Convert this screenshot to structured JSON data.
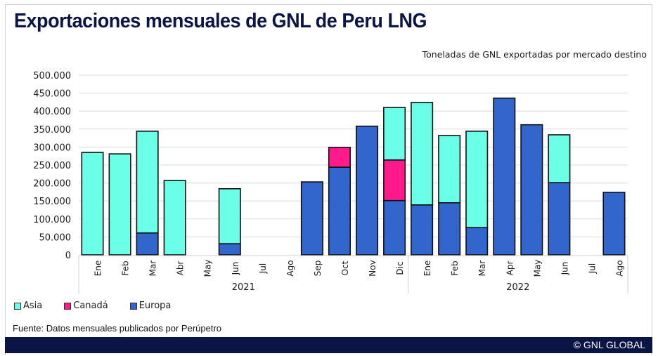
{
  "header": {
    "title": "Exportaciones mensuales de GNL de Peru LNG",
    "subtitle": "Toneladas de GNL exportadas por mercado destino"
  },
  "legend": [
    {
      "name": "Asia",
      "color": "#6cffe8"
    },
    {
      "name": "Canadá",
      "color": "#ff1a8c"
    },
    {
      "name": "Europa",
      "color": "#3366cc"
    }
  ],
  "footer": {
    "source": "Fuente: Datos mensuales publicados por Perúpetro",
    "copyright": "© GNL GLOBAL"
  },
  "chart_data": {
    "type": "bar",
    "stacked": true,
    "title": "Exportaciones mensuales de GNL de Peru LNG",
    "subtitle": "Toneladas de GNL exportadas por mercado destino",
    "xlabel": "",
    "ylabel": "",
    "ylim": [
      0,
      500000
    ],
    "yticks": [
      0,
      50000,
      100000,
      150000,
      200000,
      250000,
      300000,
      350000,
      400000,
      450000,
      500000
    ],
    "ytick_labels": [
      "0",
      "50.000",
      "100.000",
      "150.000",
      "200.000",
      "250.000",
      "300.000",
      "350.000",
      "400.000",
      "450.000",
      "500.000"
    ],
    "grid": true,
    "legend_position": "bottom-left",
    "categories": [
      "Ene",
      "Feb",
      "Mar",
      "Abr",
      "May",
      "Jun",
      "Jul",
      "Ago",
      "Sep",
      "Oct",
      "Nov",
      "Dic",
      "Ene",
      "Feb",
      "Mar",
      "Apr",
      "May",
      "Jun",
      "Jul",
      "Ago"
    ],
    "groups": [
      {
        "label": "2021",
        "count": 12
      },
      {
        "label": "2022",
        "count": 8
      }
    ],
    "series": [
      {
        "name": "Europa",
        "color": "#3366cc",
        "values": [
          0,
          0,
          61000,
          0,
          0,
          31000,
          0,
          0,
          203000,
          244000,
          358000,
          151000,
          139000,
          145000,
          76000,
          436000,
          362000,
          201000,
          0,
          174000
        ]
      },
      {
        "name": "Canadá",
        "color": "#ff1a8c",
        "values": [
          0,
          0,
          0,
          0,
          0,
          0,
          0,
          0,
          0,
          55000,
          0,
          113000,
          0,
          0,
          0,
          0,
          0,
          0,
          0,
          0
        ]
      },
      {
        "name": "Asia",
        "color": "#6cffe8",
        "values": [
          285000,
          281000,
          283000,
          207000,
          0,
          153000,
          0,
          0,
          0,
          0,
          0,
          146000,
          285000,
          187000,
          268000,
          0,
          0,
          133000,
          0,
          0
        ]
      }
    ]
  }
}
